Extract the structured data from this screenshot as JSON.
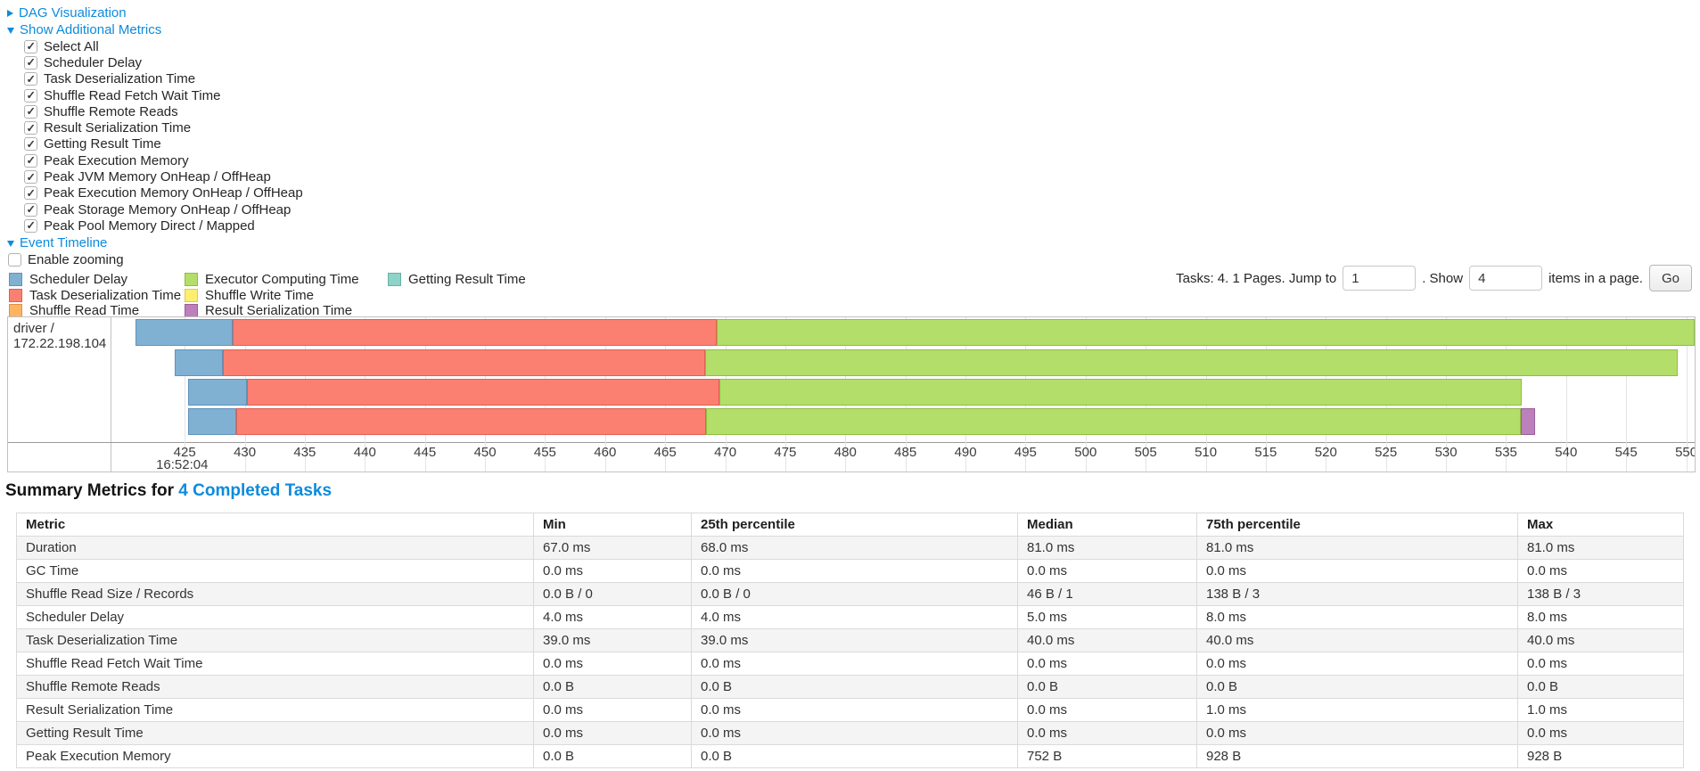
{
  "controls": {
    "dag_label": "DAG Visualization",
    "additional_metrics_label": "Show Additional Metrics",
    "metrics": [
      {
        "label": "Select All",
        "checked": true
      },
      {
        "label": "Scheduler Delay",
        "checked": true
      },
      {
        "label": "Task Deserialization Time",
        "checked": true
      },
      {
        "label": "Shuffle Read Fetch Wait Time",
        "checked": true
      },
      {
        "label": "Shuffle Remote Reads",
        "checked": true
      },
      {
        "label": "Result Serialization Time",
        "checked": true
      },
      {
        "label": "Getting Result Time",
        "checked": true
      },
      {
        "label": "Peak Execution Memory",
        "checked": true
      },
      {
        "label": "Peak JVM Memory OnHeap / OffHeap",
        "checked": true
      },
      {
        "label": "Peak Execution Memory OnHeap / OffHeap",
        "checked": true
      },
      {
        "label": "Peak Storage Memory OnHeap / OffHeap",
        "checked": true
      },
      {
        "label": "Peak Pool Memory Direct / Mapped",
        "checked": true
      }
    ],
    "event_timeline_label": "Event Timeline",
    "enable_zooming": {
      "label": "Enable zooming",
      "checked": false
    }
  },
  "pagination": {
    "tasks_info": "Tasks: 4. 1 Pages. Jump to",
    "jump_value": "1",
    "show_label": ". Show",
    "show_value": "4",
    "items_label": "items in a page.",
    "go_label": "Go"
  },
  "chart_data": {
    "type": "timeline",
    "title": "Event Timeline",
    "group_label": "driver / 172.22.198.104",
    "x_unit": "milliseconds within second 16:52:04",
    "axis": {
      "domain_min": 418.9,
      "domain_max": 550.7,
      "tick_start": 425,
      "tick_end": 550,
      "tick_step": 5,
      "time_label": "16:52:04",
      "time_label_at": 425
    },
    "series": {
      "scheduler-delay": {
        "label": "Scheduler Delay",
        "fill": "#80B1D3",
        "border": "#5E93BC"
      },
      "task-deserialization-time": {
        "label": "Task Deserialization Time",
        "fill": "#FB8072",
        "border": "#E05F51"
      },
      "shuffle-read-time": {
        "label": "Shuffle Read Time",
        "fill": "#FDB462",
        "border": "#DE9340"
      },
      "executor-computing-time": {
        "label": "Executor Computing Time",
        "fill": "#B3DE69",
        "border": "#8FBE3F"
      },
      "shuffle-write-time": {
        "label": "Shuffle Write Time",
        "fill": "#FFED6F",
        "border": "#DECB4C"
      },
      "result-serialization-time": {
        "label": "Result Serialization Time",
        "fill": "#BC80BD",
        "border": "#9A5E9B"
      },
      "getting-result-time": {
        "label": "Getting Result Time",
        "fill": "#8DD3C7",
        "border": "#67B1A4"
      }
    },
    "legend_columns": [
      [
        "scheduler-delay",
        "task-deserialization-time",
        "shuffle-read-time"
      ],
      [
        "executor-computing-time",
        "shuffle-write-time",
        "result-serialization-time"
      ],
      [
        "getting-result-time"
      ]
    ],
    "tasks": [
      {
        "name": "task-0",
        "segments": [
          {
            "series": "scheduler-delay",
            "start": 420.9,
            "end": 429.0
          },
          {
            "series": "task-deserialization-time",
            "start": 429.0,
            "end": 469.3
          },
          {
            "series": "executor-computing-time",
            "start": 469.3,
            "end": 551.4
          }
        ]
      },
      {
        "name": "task-1",
        "segments": [
          {
            "series": "scheduler-delay",
            "start": 424.2,
            "end": 428.2
          },
          {
            "series": "task-deserialization-time",
            "start": 428.2,
            "end": 468.3
          },
          {
            "series": "executor-computing-time",
            "start": 468.3,
            "end": 549.3
          }
        ]
      },
      {
        "name": "task-2",
        "segments": [
          {
            "series": "scheduler-delay",
            "start": 425.3,
            "end": 430.2
          },
          {
            "series": "task-deserialization-time",
            "start": 430.2,
            "end": 469.5
          },
          {
            "series": "executor-computing-time",
            "start": 469.5,
            "end": 536.3
          }
        ]
      },
      {
        "name": "task-3",
        "segments": [
          {
            "series": "scheduler-delay",
            "start": 425.3,
            "end": 429.3
          },
          {
            "series": "task-deserialization-time",
            "start": 429.3,
            "end": 468.4
          },
          {
            "series": "executor-computing-time",
            "start": 468.4,
            "end": 536.2
          },
          {
            "series": "result-serialization-time",
            "start": 536.2,
            "end": 537.4
          }
        ]
      }
    ]
  },
  "summary_metrics": {
    "heading_prefix": "Summary Metrics for ",
    "heading_link": "4 Completed Tasks",
    "columns": [
      "Metric",
      "Min",
      "25th percentile",
      "Median",
      "75th percentile",
      "Max"
    ],
    "rows": [
      [
        "Duration",
        "67.0 ms",
        "68.0 ms",
        "81.0 ms",
        "81.0 ms",
        "81.0 ms"
      ],
      [
        "GC Time",
        "0.0 ms",
        "0.0 ms",
        "0.0 ms",
        "0.0 ms",
        "0.0 ms"
      ],
      [
        "Shuffle Read Size / Records",
        "0.0 B / 0",
        "0.0 B / 0",
        "46 B / 1",
        "138 B / 3",
        "138 B / 3"
      ],
      [
        "Scheduler Delay",
        "4.0 ms",
        "4.0 ms",
        "5.0 ms",
        "8.0 ms",
        "8.0 ms"
      ],
      [
        "Task Deserialization Time",
        "39.0 ms",
        "39.0 ms",
        "40.0 ms",
        "40.0 ms",
        "40.0 ms"
      ],
      [
        "Shuffle Read Fetch Wait Time",
        "0.0 ms",
        "0.0 ms",
        "0.0 ms",
        "0.0 ms",
        "0.0 ms"
      ],
      [
        "Shuffle Remote Reads",
        "0.0 B",
        "0.0 B",
        "0.0 B",
        "0.0 B",
        "0.0 B"
      ],
      [
        "Result Serialization Time",
        "0.0 ms",
        "0.0 ms",
        "0.0 ms",
        "1.0 ms",
        "1.0 ms"
      ],
      [
        "Getting Result Time",
        "0.0 ms",
        "0.0 ms",
        "0.0 ms",
        "0.0 ms",
        "0.0 ms"
      ],
      [
        "Peak Execution Memory",
        "0.0 B",
        "0.0 B",
        "752 B",
        "928 B",
        "928 B"
      ]
    ]
  },
  "colors": {
    "link_blue": "#0c8bdc",
    "gridline": "#e4e4e4",
    "chart_border": "#c2c2c2",
    "zebra_row": "#f4f4f4"
  }
}
